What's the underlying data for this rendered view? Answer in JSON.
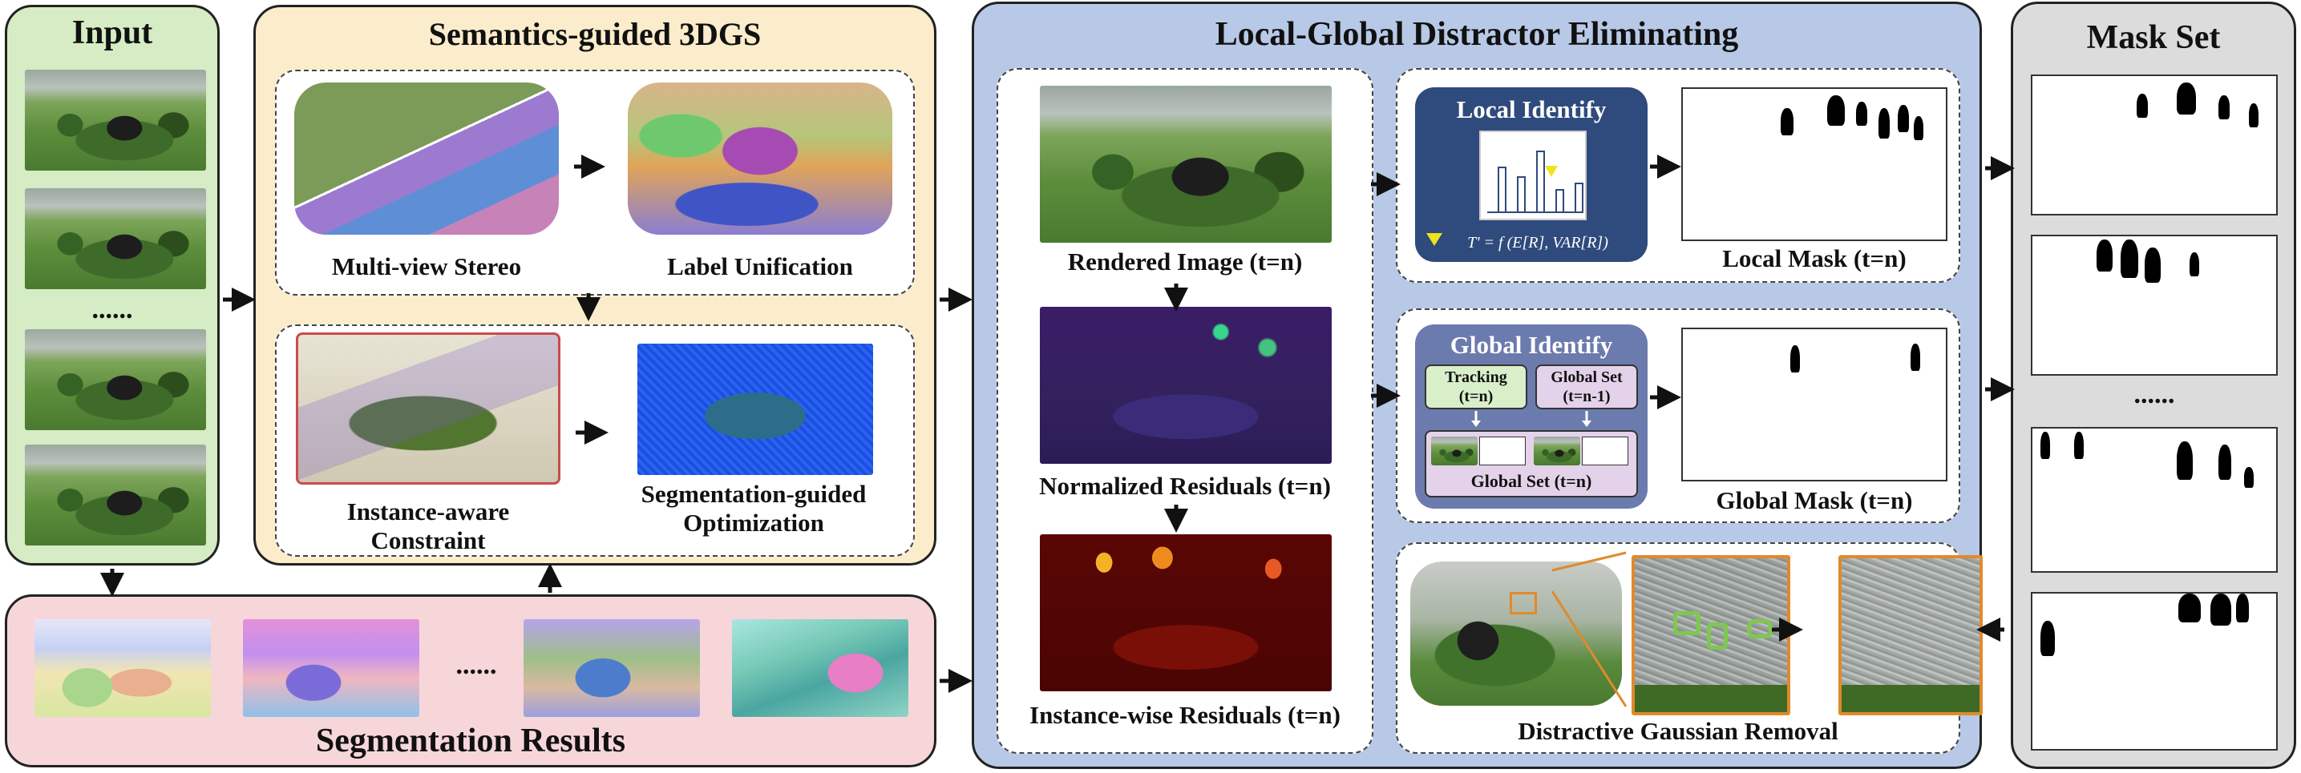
{
  "input": {
    "title": "Input",
    "ellipsis": "......"
  },
  "semantics": {
    "title": "Semantics-guided 3DGS",
    "mvs_label": "Multi-view Stereo",
    "label_unification": "Label Unification",
    "instance_aware_line1": "Instance-aware",
    "instance_aware_line2": "Constraint",
    "seg_guided_line1": "Segmentation-guided",
    "seg_guided_line2": "Optimization"
  },
  "segmentation": {
    "title": "Segmentation Results",
    "ellipsis": "......"
  },
  "lgde": {
    "title": "Local-Global Distractor Eliminating",
    "rendered": "Rendered Image (t=n)",
    "normalized": "Normalized Residuals (t=n)",
    "instance_wise": "Instance-wise Residuals (t=n)",
    "local_identify": "Local Identify",
    "local_formula": "T' = f (E[R],   VAR[R])",
    "local_mask": "Local Mask (t=n)",
    "global_identify": "Global Identify",
    "tracking": "Tracking",
    "tracking_t": "(t=n)",
    "global_set_prev": "Global Set",
    "global_set_prev_t": "(t=n-1)",
    "global_set_now": "Global Set (t=n)",
    "global_mask": "Global Mask (t=n)",
    "removal": "Distractive Gaussian Removal"
  },
  "maskset": {
    "title": "Mask Set",
    "ellipsis": "......"
  },
  "colors": {
    "input_bg": "#d5ecc4",
    "semantics_bg": "#fbeccb",
    "segmentation_bg": "#f7d6da",
    "lgde_bg": "#b8c9e7",
    "maskset_bg": "#dcdcdc",
    "local_box": "#2f4a7c",
    "global_box": "#6c7bad",
    "tracking_box": "#d8efc9",
    "globalset_box": "#e4d2ea",
    "orange_frame": "#e08a2b"
  },
  "bar_values": [
    0.7,
    0.55,
    0.95,
    0.35,
    0.45
  ]
}
